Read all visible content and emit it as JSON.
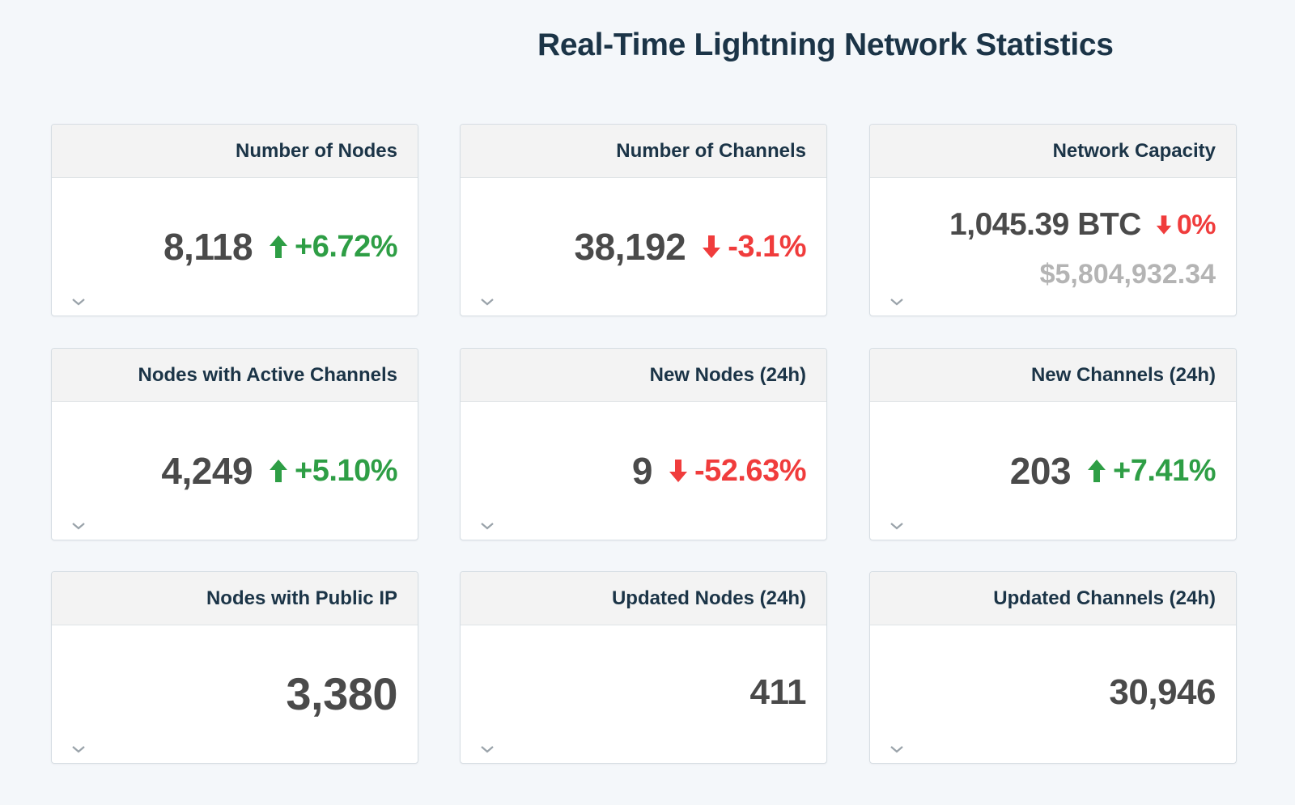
{
  "page": {
    "title": "Real-Time Lightning Network Statistics"
  },
  "colors": {
    "up": "#2e9e45",
    "down": "#f03c3c",
    "value": "#4a4a4a",
    "title": "#1b3447",
    "muted": "#b4b4b4"
  },
  "cards": [
    {
      "title": "Number of Nodes",
      "value": "8,118",
      "change": {
        "direction": "up",
        "icon": "arrow-up-icon",
        "text": "+6.72%"
      }
    },
    {
      "title": "Number of Channels",
      "value": "38,192",
      "change": {
        "direction": "down",
        "icon": "arrow-down-icon",
        "text": "-3.1%"
      }
    },
    {
      "title": "Network Capacity",
      "value": "1,045.39 BTC",
      "secondary": "$5,804,932.34",
      "change": {
        "direction": "down",
        "icon": "arrow-down-icon",
        "text": "0%"
      }
    },
    {
      "title": "Nodes with Active Channels",
      "value": "4,249",
      "change": {
        "direction": "up",
        "icon": "arrow-up-icon",
        "text": "+5.10%"
      }
    },
    {
      "title": "New Nodes (24h)",
      "value": "9",
      "change": {
        "direction": "down",
        "icon": "arrow-down-icon",
        "text": "-52.63%"
      }
    },
    {
      "title": "New Channels (24h)",
      "value": "203",
      "change": {
        "direction": "up",
        "icon": "arrow-up-icon",
        "text": "+7.41%"
      }
    },
    {
      "title": "Nodes with Public IP",
      "value": "3,380"
    },
    {
      "title": "Updated Nodes (24h)",
      "value": "411"
    },
    {
      "title": "Updated Channels (24h)",
      "value": "30,946"
    }
  ],
  "icons": {
    "expand": "chevron-down-icon"
  }
}
